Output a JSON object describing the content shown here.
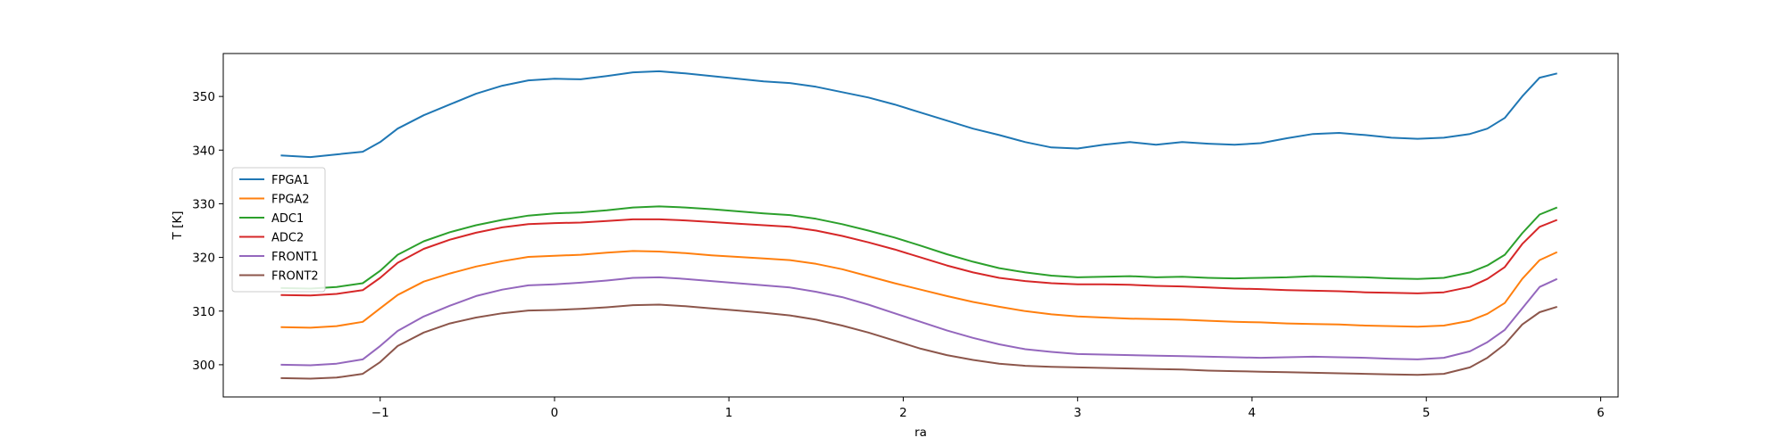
{
  "chart_data": {
    "type": "line",
    "title": "",
    "xlabel": "ra",
    "ylabel": "T [K]",
    "xlim": [
      -1.9,
      6.1
    ],
    "ylim": [
      294,
      358
    ],
    "x_ticks": [
      -1,
      0,
      1,
      2,
      3,
      4,
      5,
      6
    ],
    "x_tick_labels": [
      "−1",
      "0",
      "1",
      "2",
      "3",
      "4",
      "5",
      "6"
    ],
    "y_ticks": [
      300,
      310,
      320,
      330,
      340,
      350
    ],
    "y_tick_labels": [
      "300",
      "310",
      "320",
      "330",
      "340",
      "350"
    ],
    "grid": false,
    "legend_position": "center-left",
    "x": [
      -1.57,
      -1.4,
      -1.25,
      -1.1,
      -1.0,
      -0.9,
      -0.75,
      -0.6,
      -0.45,
      -0.3,
      -0.15,
      0.0,
      0.15,
      0.3,
      0.45,
      0.6,
      0.75,
      0.9,
      1.05,
      1.2,
      1.35,
      1.5,
      1.65,
      1.8,
      1.95,
      2.1,
      2.25,
      2.4,
      2.55,
      2.7,
      2.85,
      3.0,
      3.15,
      3.3,
      3.45,
      3.6,
      3.75,
      3.9,
      4.05,
      4.2,
      4.35,
      4.5,
      4.65,
      4.8,
      4.95,
      5.1,
      5.25,
      5.35,
      5.45,
      5.55,
      5.65,
      5.75
    ],
    "series": [
      {
        "name": "FPGA1",
        "color": "#1f77b4",
        "values": [
          339,
          338.7,
          339.2,
          339.7,
          341.5,
          344,
          346.5,
          348.5,
          350.5,
          352,
          353,
          353.3,
          353.2,
          353.8,
          354.5,
          354.7,
          354.3,
          353.8,
          353.3,
          352.8,
          352.5,
          351.8,
          350.8,
          349.8,
          348.5,
          347,
          345.5,
          344,
          342.8,
          341.5,
          340.5,
          340.3,
          341,
          341.5,
          341,
          341.5,
          341.2,
          341,
          341.3,
          342.2,
          343,
          343.2,
          342.8,
          342.3,
          342.1,
          342.3,
          343,
          344,
          346,
          350,
          353.5,
          354.3
        ]
      },
      {
        "name": "FPGA2",
        "color": "#ff7f0e",
        "values": [
          307,
          306.9,
          307.2,
          308,
          310.5,
          313,
          315.5,
          317,
          318.3,
          319.3,
          320.1,
          320.3,
          320.5,
          320.9,
          321.2,
          321.1,
          320.8,
          320.4,
          320.1,
          319.8,
          319.5,
          318.8,
          317.8,
          316.5,
          315.2,
          314,
          312.8,
          311.7,
          310.8,
          310,
          309.4,
          309,
          308.8,
          308.6,
          308.5,
          308.4,
          308.2,
          308,
          307.9,
          307.7,
          307.6,
          307.5,
          307.3,
          307.2,
          307.1,
          307.3,
          308.2,
          309.5,
          311.5,
          316,
          319.5,
          321
        ]
      },
      {
        "name": "ADC1",
        "color": "#2ca02c",
        "values": [
          314.3,
          314.2,
          314.5,
          315.2,
          317.5,
          320.5,
          323,
          324.7,
          326,
          327,
          327.8,
          328.2,
          328.4,
          328.8,
          329.3,
          329.5,
          329.3,
          329,
          328.6,
          328.2,
          327.9,
          327.2,
          326.2,
          325,
          323.7,
          322.2,
          320.6,
          319.2,
          318,
          317.2,
          316.6,
          316.3,
          316.4,
          316.5,
          316.3,
          316.4,
          316.2,
          316.1,
          316.2,
          316.3,
          316.5,
          316.4,
          316.3,
          316.1,
          316,
          316.2,
          317.2,
          318.5,
          320.5,
          324.5,
          328,
          329.3
        ]
      },
      {
        "name": "ADC2",
        "color": "#d62728",
        "values": [
          313,
          312.9,
          313.2,
          313.9,
          316.2,
          319,
          321.6,
          323.3,
          324.6,
          325.6,
          326.2,
          326.4,
          326.5,
          326.8,
          327.1,
          327.1,
          326.9,
          326.6,
          326.3,
          326,
          325.7,
          325,
          324,
          322.8,
          321.5,
          320,
          318.5,
          317.2,
          316.2,
          315.6,
          315.2,
          315,
          315,
          314.9,
          314.7,
          314.6,
          314.4,
          314.2,
          314.1,
          313.9,
          313.8,
          313.7,
          313.5,
          313.4,
          313.3,
          313.5,
          314.5,
          316,
          318.2,
          322.5,
          325.7,
          327
        ]
      },
      {
        "name": "FRONT1",
        "color": "#9467bd",
        "values": [
          300,
          299.9,
          300.2,
          301,
          303.5,
          306.3,
          309,
          311,
          312.8,
          314,
          314.8,
          315,
          315.3,
          315.7,
          316.2,
          316.3,
          316,
          315.6,
          315.2,
          314.8,
          314.4,
          313.6,
          312.6,
          311.2,
          309.6,
          308,
          306.4,
          305,
          303.8,
          302.9,
          302.4,
          302,
          301.9,
          301.8,
          301.7,
          301.6,
          301.5,
          301.4,
          301.3,
          301.4,
          301.5,
          301.4,
          301.3,
          301.1,
          301,
          301.3,
          302.5,
          304.2,
          306.5,
          310.5,
          314.5,
          316
        ]
      },
      {
        "name": "FRONT2",
        "color": "#8c564b",
        "values": [
          297.5,
          297.4,
          297.6,
          298.3,
          300.5,
          303.5,
          306,
          307.7,
          308.8,
          309.6,
          310.1,
          310.2,
          310.4,
          310.7,
          311.1,
          311.2,
          310.9,
          310.5,
          310.1,
          309.7,
          309.2,
          308.4,
          307.3,
          306,
          304.5,
          303,
          301.8,
          300.9,
          300.2,
          299.8,
          299.6,
          299.5,
          299.4,
          299.3,
          299.2,
          299.1,
          298.9,
          298.8,
          298.7,
          298.6,
          298.5,
          298.4,
          298.3,
          298.2,
          298.1,
          298.3,
          299.5,
          301.3,
          303.8,
          307.5,
          309.8,
          310.8
        ]
      }
    ]
  }
}
